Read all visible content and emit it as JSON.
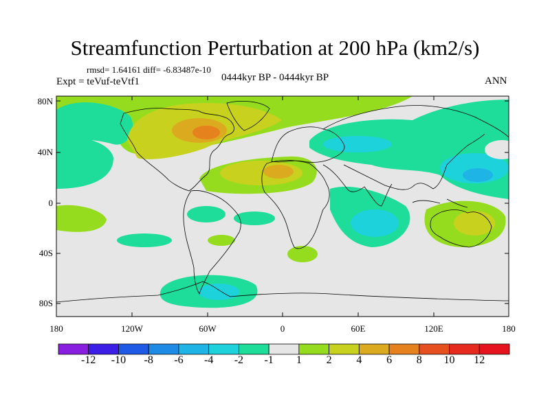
{
  "title": "Streamfunction Perturbation at 200 hPa (km2/s)",
  "stats": "rmsd= 1.64161 diff= -6.83487e-10",
  "experiment": "Expt = teVuf-teVtf1",
  "period": "0444kyr BP - 0444kyr BP",
  "season": "ANN",
  "lat_labels": [
    "80N",
    "40N",
    "0",
    "40S",
    "80S"
  ],
  "lon_labels": [
    "180",
    "120W",
    "60W",
    "0",
    "60E",
    "120E",
    "180"
  ],
  "colorbar": {
    "labels": [
      "-12",
      "-10",
      "-8",
      "-6",
      "-4",
      "-2",
      "-1",
      "1",
      "2",
      "4",
      "6",
      "8",
      "10",
      "12"
    ],
    "colors": [
      "#8a1ee0",
      "#3c1ee6",
      "#1e5ae6",
      "#1e8ce6",
      "#1eb4e6",
      "#1ed2dc",
      "#1edc9a",
      "#e6e6e6",
      "#96dc1e",
      "#c8d21e",
      "#dcaa1e",
      "#e6821e",
      "#e6501e",
      "#e62a1e",
      "#e6141e"
    ]
  }
}
